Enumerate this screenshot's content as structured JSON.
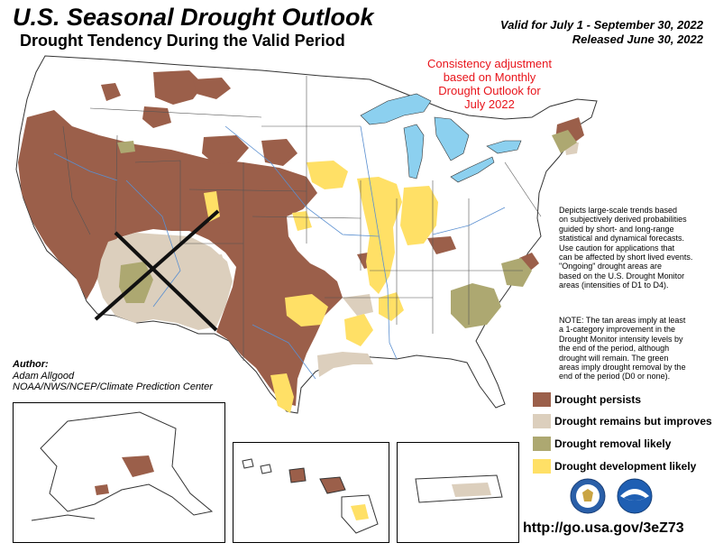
{
  "header": {
    "title": "U.S. Seasonal Drought Outlook",
    "subtitle": "Drought Tendency During the Valid Period",
    "valid": "Valid for July 1 - September 30, 2022",
    "released": "Released June 30, 2022"
  },
  "consistency_note": [
    "Consistency adjustment",
    "based on Monthly",
    "Drought Outlook for",
    "July 2022"
  ],
  "description": [
    "Depicts large-scale trends based",
    "on subjectively derived probabilities",
    "guided by short- and long-range",
    "statistical and dynamical forecasts.",
    "Use caution for applications that",
    "can be affected by short lived events.",
    "\"Ongoing\" drought areas are",
    "based on the U.S. Drought Monitor",
    "areas (intensities of D1 to D4)."
  ],
  "note": [
    "NOTE: The tan areas imply at least",
    "a 1-category improvement in the",
    "Drought Monitor intensity levels by",
    "the end of the period, although",
    "drought will remain. The green",
    "areas imply drought removal by the",
    "end of the period (D0 or none)."
  ],
  "author": {
    "heading": "Author:",
    "name": "Adam Allgood",
    "org": "NOAA/NWS/NCEP/Climate Prediction Center"
  },
  "legend": [
    {
      "label": "Drought persists",
      "color": "#9b5f4a"
    },
    {
      "label": "Drought remains but improves",
      "color": "#dccfbd"
    },
    {
      "label": "Drought removal likely",
      "color": "#ada871"
    },
    {
      "label": "Drought development likely",
      "color": "#ffe066"
    }
  ],
  "colors": {
    "water": "#8cd0ef",
    "state_border": "#555555",
    "river": "#5a8fd0"
  },
  "url": "http://go.usa.gov/3eZ73",
  "logos": [
    "noaa-logo",
    "commerce-seal"
  ]
}
